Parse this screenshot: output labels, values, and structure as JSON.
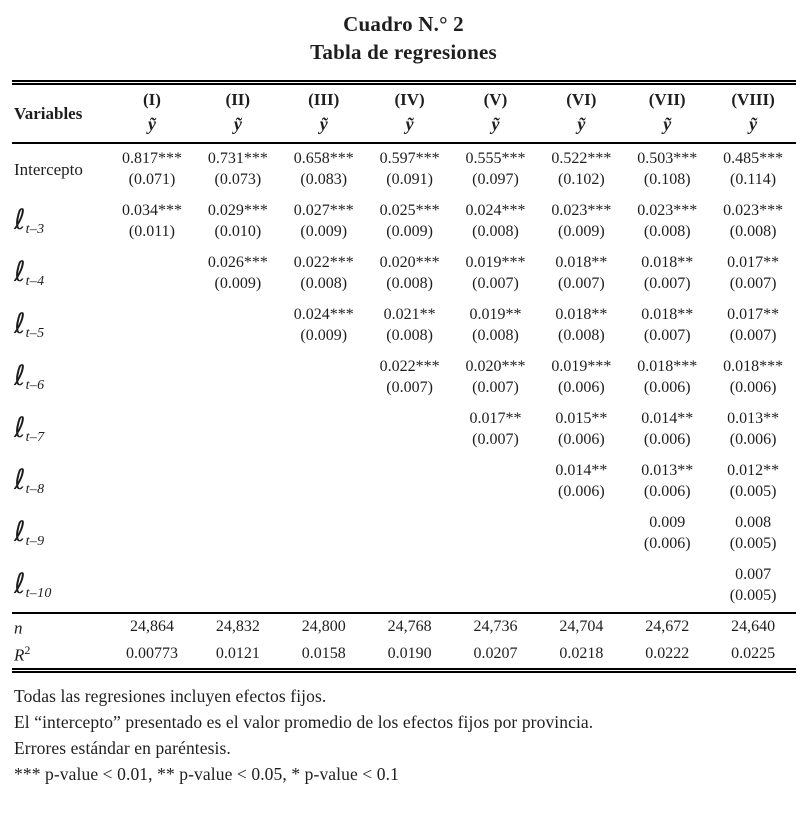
{
  "title": "Cuadro N.° 2",
  "subtitle": "Tabla de regresiones",
  "table": {
    "variables_header": "Variables",
    "columns": [
      {
        "numeral": "(I)",
        "dep": "ỹ"
      },
      {
        "numeral": "(II)",
        "dep": "ỹ"
      },
      {
        "numeral": "(III)",
        "dep": "ỹ"
      },
      {
        "numeral": "(IV)",
        "dep": "ỹ"
      },
      {
        "numeral": "(V)",
        "dep": "ỹ"
      },
      {
        "numeral": "(VI)",
        "dep": "ỹ"
      },
      {
        "numeral": "(VII)",
        "dep": "ỹ"
      },
      {
        "numeral": "(VIII)",
        "dep": "ỹ"
      }
    ],
    "rows": [
      {
        "label_base": "Intercepto",
        "label_sub": "",
        "style": "plain",
        "cells": [
          {
            "coef": "0.817***",
            "se": "(0.071)"
          },
          {
            "coef": "0.731***",
            "se": "(0.073)"
          },
          {
            "coef": "0.658***",
            "se": "(0.083)"
          },
          {
            "coef": "0.597***",
            "se": "(0.091)"
          },
          {
            "coef": "0.555***",
            "se": "(0.097)"
          },
          {
            "coef": "0.522***",
            "se": "(0.102)"
          },
          {
            "coef": "0.503***",
            "se": "(0.108)"
          },
          {
            "coef": "0.485***",
            "se": "(0.114)"
          }
        ]
      },
      {
        "label_base": "ℓ",
        "label_sub": "t–3",
        "style": "lag",
        "cells": [
          {
            "coef": "0.034***",
            "se": "(0.011)"
          },
          {
            "coef": "0.029***",
            "se": "(0.010)"
          },
          {
            "coef": "0.027***",
            "se": "(0.009)"
          },
          {
            "coef": "0.025***",
            "se": "(0.009)"
          },
          {
            "coef": "0.024***",
            "se": "(0.008)"
          },
          {
            "coef": "0.023***",
            "se": "(0.009)"
          },
          {
            "coef": "0.023***",
            "se": "(0.008)"
          },
          {
            "coef": "0.023***",
            "se": "(0.008)"
          }
        ]
      },
      {
        "label_base": "ℓ",
        "label_sub": "t–4",
        "style": "lag",
        "cells": [
          null,
          {
            "coef": "0.026***",
            "se": "(0.009)"
          },
          {
            "coef": "0.022***",
            "se": "(0.008)"
          },
          {
            "coef": "0.020***",
            "se": "(0.008)"
          },
          {
            "coef": "0.019***",
            "se": "(0.007)"
          },
          {
            "coef": "0.018**",
            "se": "(0.007)"
          },
          {
            "coef": "0.018**",
            "se": "(0.007)"
          },
          {
            "coef": "0.017**",
            "se": "(0.007)"
          }
        ]
      },
      {
        "label_base": "ℓ",
        "label_sub": "t–5",
        "style": "lag",
        "cells": [
          null,
          null,
          {
            "coef": "0.024***",
            "se": "(0.009)"
          },
          {
            "coef": "0.021**",
            "se": "(0.008)"
          },
          {
            "coef": "0.019**",
            "se": "(0.008)"
          },
          {
            "coef": "0.018**",
            "se": "(0.008)"
          },
          {
            "coef": "0.018**",
            "se": "(0.007)"
          },
          {
            "coef": "0.017**",
            "se": "(0.007)"
          }
        ]
      },
      {
        "label_base": "ℓ",
        "label_sub": "t–6",
        "style": "lag",
        "cells": [
          null,
          null,
          null,
          {
            "coef": "0.022***",
            "se": "(0.007)"
          },
          {
            "coef": "0.020***",
            "se": "(0.007)"
          },
          {
            "coef": "0.019***",
            "se": "(0.006)"
          },
          {
            "coef": "0.018***",
            "se": "(0.006)"
          },
          {
            "coef": "0.018***",
            "se": "(0.006)"
          }
        ]
      },
      {
        "label_base": "ℓ",
        "label_sub": "t–7",
        "style": "lag",
        "cells": [
          null,
          null,
          null,
          null,
          {
            "coef": "0.017**",
            "se": "(0.007)"
          },
          {
            "coef": "0.015**",
            "se": "(0.006)"
          },
          {
            "coef": "0.014**",
            "se": "(0.006)"
          },
          {
            "coef": "0.013**",
            "se": "(0.006)"
          }
        ]
      },
      {
        "label_base": "ℓ",
        "label_sub": "t–8",
        "style": "lag",
        "cells": [
          null,
          null,
          null,
          null,
          null,
          {
            "coef": "0.014**",
            "se": "(0.006)"
          },
          {
            "coef": "0.013**",
            "se": "(0.006)"
          },
          {
            "coef": "0.012**",
            "se": "(0.005)"
          }
        ]
      },
      {
        "label_base": "ℓ",
        "label_sub": "t–9",
        "style": "lag",
        "cells": [
          null,
          null,
          null,
          null,
          null,
          null,
          {
            "coef": "0.009",
            "se": "(0.006)"
          },
          {
            "coef": "0.008",
            "se": "(0.005)"
          }
        ]
      },
      {
        "label_base": "ℓ",
        "label_sub": "t–10",
        "style": "lag",
        "cells": [
          null,
          null,
          null,
          null,
          null,
          null,
          null,
          {
            "coef": "0.007",
            "se": "(0.005)"
          }
        ]
      }
    ],
    "stats": [
      {
        "label_base": "n",
        "label_sup": "",
        "values": [
          "24,864",
          "24,832",
          "24,800",
          "24,768",
          "24,736",
          "24,704",
          "24,672",
          "24,640"
        ]
      },
      {
        "label_base": "R",
        "label_sup": "2",
        "values": [
          "0.00773",
          "0.0121",
          "0.0158",
          "0.0190",
          "0.0207",
          "0.0218",
          "0.0222",
          "0.0225"
        ]
      }
    ]
  },
  "notes": [
    "Todas las regresiones incluyen efectos fijos.",
    "El “intercepto” presentado es el valor promedio de los efectos fijos por provincia.",
    "Errores estándar en paréntesis.",
    "*** p-value < 0.01, ** p-value < 0.05, * p-value < 0.1"
  ]
}
